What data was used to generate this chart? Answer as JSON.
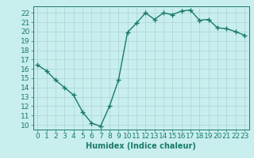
{
  "x": [
    0,
    1,
    2,
    3,
    4,
    5,
    6,
    7,
    8,
    9,
    10,
    11,
    12,
    13,
    14,
    15,
    16,
    17,
    18,
    19,
    20,
    21,
    22,
    23
  ],
  "y": [
    16.4,
    15.8,
    14.8,
    14.0,
    13.2,
    11.4,
    10.2,
    9.85,
    12.0,
    14.8,
    19.9,
    20.9,
    22.0,
    21.3,
    22.0,
    21.8,
    22.2,
    22.3,
    21.2,
    21.3,
    20.4,
    20.3,
    20.0,
    19.6
  ],
  "line_color": "#1a7a6a",
  "marker": "+",
  "marker_size": 4,
  "bg_color": "#c8eeee",
  "grid_major_color": "#b0d8d8",
  "grid_minor_color": "#d8f0f0",
  "xlabel": "Humidex (Indice chaleur)",
  "ylim": [
    9.5,
    22.7
  ],
  "xlim": [
    -0.5,
    23.5
  ],
  "yticks": [
    10,
    11,
    12,
    13,
    14,
    15,
    16,
    17,
    18,
    19,
    20,
    21,
    22
  ],
  "xticks": [
    0,
    1,
    2,
    3,
    4,
    5,
    6,
    7,
    8,
    9,
    10,
    11,
    12,
    13,
    14,
    15,
    16,
    17,
    18,
    19,
    20,
    21,
    22,
    23
  ],
  "xlabel_fontsize": 7,
  "tick_fontsize": 6.5,
  "line_width": 1.0
}
